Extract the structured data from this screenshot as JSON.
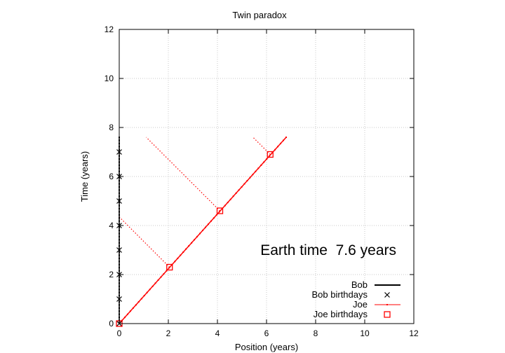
{
  "chart_data": {
    "type": "line",
    "title": "Twin paradox",
    "xlabel": "Position (years)",
    "ylabel": "Time (years)",
    "xlim": [
      0,
      12
    ],
    "ylim": [
      0,
      12
    ],
    "xticks": [
      0,
      2,
      4,
      6,
      8,
      10,
      12
    ],
    "yticks": [
      0,
      2,
      4,
      6,
      8,
      10,
      12
    ],
    "xtick_labels": [
      "0",
      "2",
      "4",
      "6",
      "8",
      "10",
      "12"
    ],
    "ytick_labels": [
      "0",
      "2",
      "4",
      "6",
      "8",
      "10",
      "12"
    ],
    "grid": true,
    "legend_position": "bottom-right",
    "annotation": "Earth time  7.6 years",
    "colors": {
      "bob": "#000000",
      "joe": "#ff0000",
      "grid": "#c8c8c8"
    },
    "series": [
      {
        "name": "Bob",
        "style": "line-points",
        "x": [
          0,
          0
        ],
        "y": [
          0,
          7.6
        ]
      },
      {
        "name": "Bob birthdays",
        "style": "cross",
        "x": [
          0,
          0,
          0,
          0,
          0,
          0,
          0,
          0
        ],
        "y": [
          0,
          1,
          2,
          3,
          4,
          5,
          6,
          7
        ]
      },
      {
        "name": "Joe",
        "style": "line-points",
        "x": [
          0,
          6.8
        ],
        "y": [
          0,
          7.6
        ]
      },
      {
        "name": "Joe birthdays",
        "style": "square",
        "x": [
          0,
          2.05,
          4.1,
          6.15
        ],
        "y": [
          0,
          2.3,
          4.6,
          6.9
        ]
      }
    ],
    "light_lines": [
      {
        "x": [
          2.05,
          0
        ],
        "y": [
          2.3,
          4.35
        ]
      },
      {
        "x": [
          4.1,
          1.1
        ],
        "y": [
          4.6,
          7.6
        ]
      },
      {
        "x": [
          6.15,
          5.45
        ],
        "y": [
          6.9,
          7.6
        ]
      }
    ]
  }
}
